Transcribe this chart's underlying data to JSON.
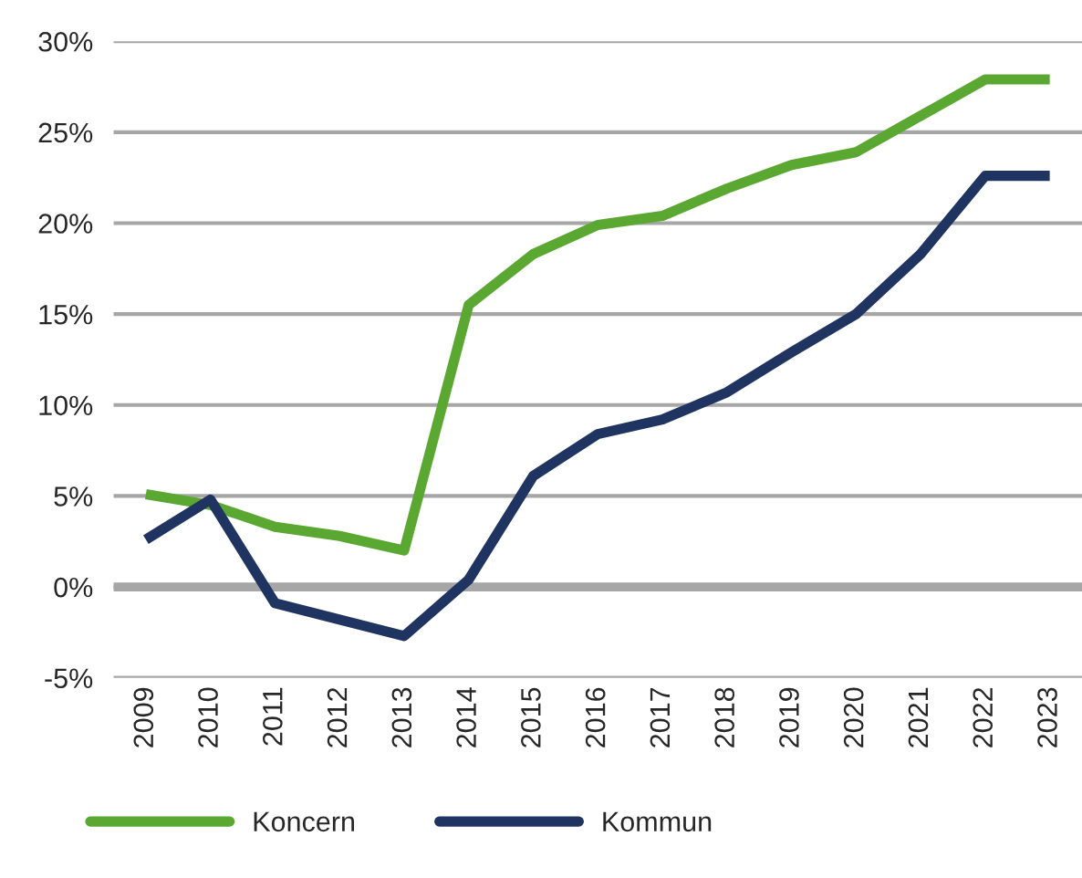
{
  "chart_data": {
    "type": "line",
    "categories": [
      "2009",
      "2010",
      "2011",
      "2012",
      "2013",
      "2014",
      "2015",
      "2016",
      "2017",
      "2018",
      "2019",
      "2020",
      "2021",
      "2022",
      "2023"
    ],
    "series": [
      {
        "name": "Koncern",
        "color": "#5aa832",
        "values": [
          5.1,
          4.5,
          3.3,
          2.8,
          2.0,
          15.5,
          18.3,
          19.9,
          20.4,
          21.9,
          23.2,
          23.9,
          25.9,
          27.9,
          27.9
        ]
      },
      {
        "name": "Kommun",
        "color": "#1f3461",
        "values": [
          2.6,
          4.8,
          -0.9,
          -1.8,
          -2.7,
          0.4,
          6.1,
          8.4,
          9.2,
          10.7,
          12.9,
          15.0,
          18.3,
          22.6,
          22.6
        ]
      }
    ],
    "ylim": [
      -5,
      30
    ],
    "yticks": [
      {
        "value": -5,
        "label": "-5%"
      },
      {
        "value": 0,
        "label": "0%"
      },
      {
        "value": 5,
        "label": "5%"
      },
      {
        "value": 10,
        "label": "10%"
      },
      {
        "value": 15,
        "label": "15%"
      },
      {
        "value": 20,
        "label": "20%"
      },
      {
        "value": 25,
        "label": "25%"
      },
      {
        "value": 30,
        "label": "30%"
      }
    ],
    "ref_lines": [
      {
        "axis": "y",
        "value": 0,
        "color": "#a6a6a6"
      }
    ],
    "grid": "y",
    "legend": "bottom",
    "marker": "none",
    "line_style": "solid"
  }
}
